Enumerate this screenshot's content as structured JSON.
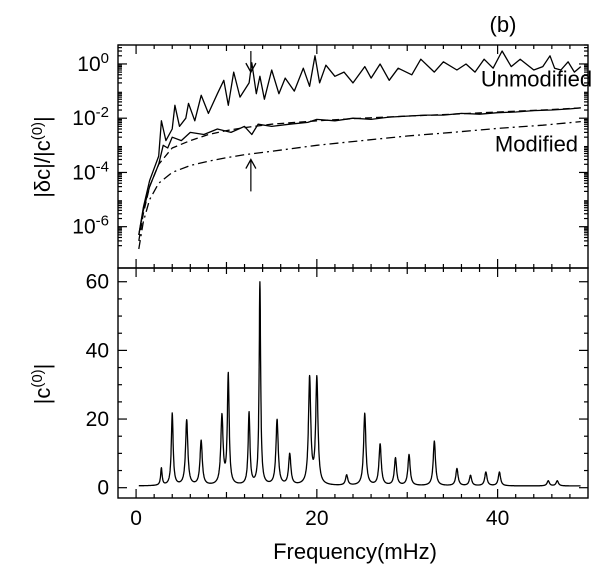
{
  "figure": {
    "panel_label": "(b)",
    "xlabel": "Frequency(mHz)"
  },
  "chart_data": [
    {
      "type": "line",
      "panel": "top",
      "ylabel": "|δc|/|c(0)|",
      "yscale": "log",
      "ylim": [
        3e-08,
        5
      ],
      "xlim": [
        -2,
        50
      ],
      "x_ticks": [
        0,
        20,
        40
      ],
      "y_ticks": [
        {
          "value": 1e-06,
          "mant": "10",
          "exp": "-6"
        },
        {
          "value": 0.0001,
          "mant": "10",
          "exp": "-4"
        },
        {
          "value": 0.01,
          "mant": "10",
          "exp": "-2"
        },
        {
          "value": 1,
          "mant": "10",
          "exp": "0"
        }
      ],
      "annotations": [
        {
          "text": "Unmodified",
          "x": 44.3,
          "y": 0.15
        },
        {
          "text": "Modified",
          "x": 44.3,
          "y": 0.0006
        }
      ],
      "arrows": [
        {
          "direction": "down",
          "x": 12.7,
          "y_from": 3.0,
          "y_to": 0.5
        },
        {
          "direction": "up",
          "x": 12.7,
          "y_from": 2e-05,
          "y_to": 0.0003
        }
      ],
      "series": [
        {
          "style": "solid",
          "x": [
            0.3,
            0.8,
            1.5,
            2.5,
            2.8,
            3.3,
            4.0,
            4.3,
            4.8,
            5.5,
            5.8,
            6.5,
            7.2,
            8.0,
            9.0,
            9.7,
            10.2,
            10.8,
            11.5,
            12.5,
            12.8,
            13.3,
            13.7,
            14.2,
            15.0,
            15.8,
            16.5,
            17.5,
            18.5,
            19.2,
            19.8,
            20.3,
            21.0,
            22.0,
            23.0,
            24.0,
            25.3,
            26.0,
            27.0,
            28.0,
            29.0,
            30.5,
            31.5,
            33.0,
            34.0,
            35.5,
            36.5,
            37.5,
            38.5,
            39.5,
            40.5,
            41.5,
            42.5,
            44.0,
            45.0,
            45.8,
            46.3,
            47.0,
            47.8,
            48.5,
            49.2
          ],
          "y": [
            5e-07,
            5e-06,
            5e-05,
            0.0004,
            0.008,
            0.0015,
            0.004,
            0.03,
            0.005,
            0.01,
            0.035,
            0.008,
            0.07,
            0.015,
            0.08,
            0.25,
            0.03,
            0.5,
            0.06,
            0.2,
            1.1,
            0.08,
            0.35,
            0.05,
            0.6,
            0.08,
            0.3,
            0.1,
            0.7,
            0.15,
            2.0,
            0.2,
            0.9,
            0.35,
            0.5,
            0.2,
            0.8,
            0.3,
            1.0,
            0.25,
            0.7,
            0.4,
            1.5,
            0.5,
            1.2,
            0.6,
            1.0,
            0.5,
            1.5,
            0.7,
            3.0,
            0.8,
            1.5,
            0.6,
            0.8,
            2.0,
            0.7,
            0.6,
            1.2,
            0.5,
            0.8
          ]
        },
        {
          "style": "solid",
          "x": [
            0.3,
            0.8,
            1.5,
            2.5,
            3.0,
            3.5,
            4.0,
            5.0,
            6.0,
            7.5,
            9.0,
            10.5,
            12.0,
            12.8,
            13.5,
            15.0,
            17.0,
            19.0,
            20.0,
            22.0,
            24.0,
            26.0,
            28.0,
            30.0,
            32.0,
            34.0,
            36.0,
            38.0,
            40.0,
            42.0,
            44.0,
            46.0,
            48.0,
            49.2
          ],
          "y": [
            5e-07,
            4e-06,
            3e-05,
            0.0002,
            0.001,
            0.0008,
            0.002,
            0.0015,
            0.003,
            0.0025,
            0.004,
            0.003,
            0.005,
            0.0025,
            0.006,
            0.005,
            0.006,
            0.007,
            0.009,
            0.008,
            0.01,
            0.009,
            0.011,
            0.012,
            0.013,
            0.013,
            0.015,
            0.014,
            0.016,
            0.017,
            0.019,
            0.02,
            0.022,
            0.024
          ]
        },
        {
          "style": "dashed",
          "x": [
            0.3,
            0.8,
            1.5,
            2.5,
            4.0,
            6.0,
            8.0,
            10.0,
            12.0,
            15.0,
            20.0,
            25.0,
            30.0,
            35.0,
            40.0,
            45.0,
            49.2
          ],
          "y": [
            3e-07,
            3e-06,
            3e-05,
            0.0002,
            0.0008,
            0.0015,
            0.0025,
            0.0035,
            0.0045,
            0.006,
            0.008,
            0.01,
            0.012,
            0.014,
            0.017,
            0.02,
            0.024
          ]
        },
        {
          "style": "dashdot",
          "x": [
            0.3,
            0.8,
            1.5,
            2.5,
            4.0,
            6.0,
            8.0,
            10.0,
            12.0,
            15.0,
            20.0,
            25.0,
            30.0,
            35.0,
            40.0,
            45.0,
            49.2
          ],
          "y": [
            1.5e-07,
            1.5e-06,
            1e-05,
            4e-05,
            0.0001,
            0.00018,
            0.00026,
            0.00035,
            0.00045,
            0.0006,
            0.001,
            0.0015,
            0.0022,
            0.003,
            0.0042,
            0.0055,
            0.0075
          ]
        }
      ]
    },
    {
      "type": "line",
      "panel": "bottom",
      "ylabel": "|c(0)|",
      "ylim": [
        -3,
        64
      ],
      "xlim": [
        -2,
        50
      ],
      "x_ticks": [
        0,
        20,
        40
      ],
      "y_ticks": [
        0,
        20,
        40,
        60
      ],
      "peaks": [
        {
          "x": 2.8,
          "h": 5,
          "w": 0.1
        },
        {
          "x": 4.0,
          "h": 21,
          "w": 0.12
        },
        {
          "x": 5.6,
          "h": 19,
          "w": 0.15
        },
        {
          "x": 7.2,
          "h": 13,
          "w": 0.15
        },
        {
          "x": 9.5,
          "h": 20,
          "w": 0.15
        },
        {
          "x": 10.2,
          "h": 32,
          "w": 0.12
        },
        {
          "x": 12.5,
          "h": 21,
          "w": 0.12
        },
        {
          "x": 13.7,
          "h": 59,
          "w": 0.1
        },
        {
          "x": 15.6,
          "h": 19,
          "w": 0.15
        },
        {
          "x": 17.0,
          "h": 9,
          "w": 0.15
        },
        {
          "x": 19.2,
          "h": 31,
          "w": 0.15
        },
        {
          "x": 20.0,
          "h": 31,
          "w": 0.15
        },
        {
          "x": 23.3,
          "h": 3,
          "w": 0.15
        },
        {
          "x": 25.3,
          "h": 21,
          "w": 0.15
        },
        {
          "x": 27.0,
          "h": 12,
          "w": 0.15
        },
        {
          "x": 28.7,
          "h": 8,
          "w": 0.15
        },
        {
          "x": 30.2,
          "h": 9,
          "w": 0.15
        },
        {
          "x": 33.0,
          "h": 13,
          "w": 0.15
        },
        {
          "x": 35.5,
          "h": 5,
          "w": 0.15
        },
        {
          "x": 37.0,
          "h": 3,
          "w": 0.15
        },
        {
          "x": 38.7,
          "h": 4,
          "w": 0.15
        },
        {
          "x": 40.2,
          "h": 4,
          "w": 0.15
        },
        {
          "x": 45.6,
          "h": 1.5,
          "w": 0.15
        },
        {
          "x": 46.6,
          "h": 1.5,
          "w": 0.15
        }
      ],
      "baseline": 0.5,
      "x_start": 0.3,
      "x_end": 49.2
    }
  ]
}
